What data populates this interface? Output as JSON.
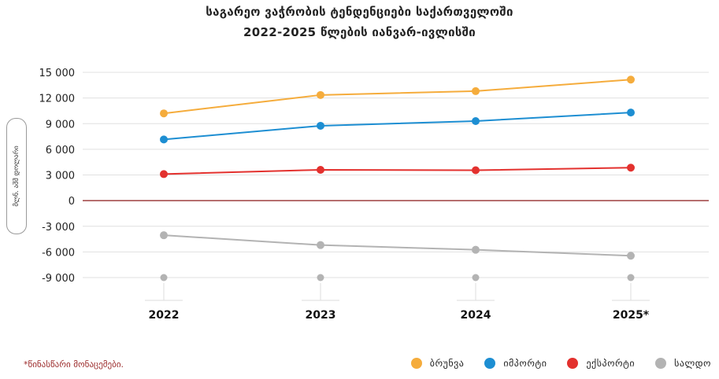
{
  "title_line1": "საგარეო ვაჭრობის ტენდენციები საქართველოში",
  "title_line2": "2022-2025 წლების იანვარ-ივლისში",
  "footnote": "*წინასწარი მონაცემები.",
  "colors": {
    "turnover": "#f5ac3c",
    "import": "#1d8ed2",
    "export": "#e3312e",
    "balance": "#b3b3b3",
    "zero_line": "#8b1a1a",
    "grid": "#e0e0e0"
  },
  "chart_data": {
    "type": "line",
    "title": "საგარეო ვაჭრობის ტენდენციები საქართველოში 2022-2025 წლების იანვარ-ივლისში",
    "ylabel": "მლნ. აშშ დოლარი",
    "xlabel": "",
    "categories": [
      "2022",
      "2023",
      "2024",
      "2025*"
    ],
    "ylim": [
      -9000,
      15000
    ],
    "yticks": [
      15000,
      12000,
      9000,
      6000,
      3000,
      0,
      -3000,
      -6000,
      -9000
    ],
    "ytick_labels": [
      "15 000",
      "12 000",
      "9 000",
      "6 000",
      "3 000",
      "0",
      "-3 000",
      "-6 000",
      "-9 000"
    ],
    "grid": true,
    "legend_position": "bottom-right",
    "series": [
      {
        "name": "ბრუნვა",
        "key": "turnover",
        "values": [
          10200,
          12350,
          12800,
          14150
        ]
      },
      {
        "name": "იმპორტი",
        "key": "import",
        "values": [
          7150,
          8750,
          9300,
          10300
        ]
      },
      {
        "name": "ექსპორტი",
        "key": "export",
        "values": [
          3100,
          3600,
          3550,
          3850
        ]
      },
      {
        "name": "სალდო",
        "key": "balance",
        "values": [
          -4050,
          -5200,
          -5750,
          -6450
        ]
      }
    ]
  }
}
